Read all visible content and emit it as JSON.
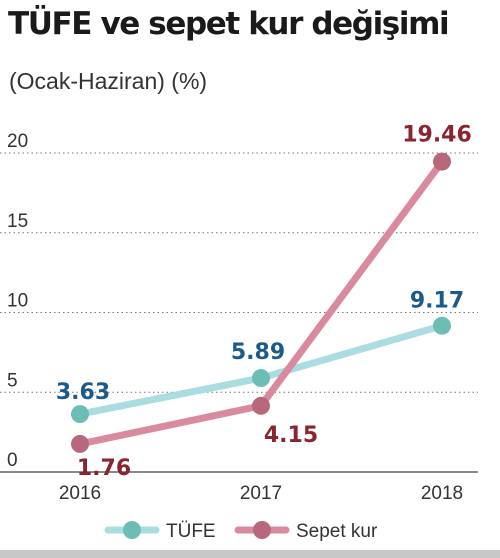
{
  "chart_data": {
    "type": "line",
    "title": "TÜFE ve sepet kur değişimi",
    "subtitle": "(Ocak-Haziran) (%)",
    "x": [
      "2016",
      "2017",
      "2018"
    ],
    "ylim": [
      0,
      20
    ],
    "yticks": [
      "0",
      "5",
      "10",
      "15",
      "20"
    ],
    "grid": true,
    "legend_position": "bottom",
    "series": [
      {
        "name": "TÜFE",
        "values": [
          3.63,
          5.89,
          9.17
        ],
        "labels": [
          "3.63",
          "5.89",
          "9.17"
        ],
        "color": "#a9dde0",
        "marker_color": "#6dbdb7",
        "label_color": "#1d5a8c"
      },
      {
        "name": "Sepet kur",
        "values": [
          1.76,
          4.15,
          19.46
        ],
        "labels": [
          "1.76",
          "4.15",
          "19.46"
        ],
        "color": "#d98a9e",
        "marker_color": "#b7687d",
        "label_color": "#8a2530"
      }
    ]
  }
}
